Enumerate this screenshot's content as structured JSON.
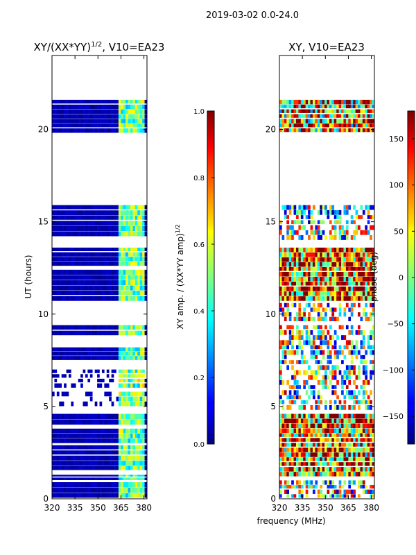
{
  "figure": {
    "suptitle": "2019-03-02 0.0-24.0",
    "shared_xlabel": "frequency (MHz)"
  },
  "chart_data": [
    {
      "type": "heatmap",
      "title_prefix": "XY/(XX*YY)",
      "title_exponent": "1/2",
      "title_suffix": ", V10=EA23",
      "ylabel": "UT (hours)",
      "xlim": [
        320,
        382
      ],
      "ylim": [
        0,
        24
      ],
      "xticks": [
        320,
        335,
        350,
        365,
        380
      ],
      "yticks": [
        0,
        5,
        10,
        15,
        20
      ],
      "colormap": "jet",
      "colorbar": {
        "label_prefix": "XY amp. / (XX*YY amp)",
        "label_exponent": "1/2",
        "range": [
          0.0,
          1.0
        ],
        "ticks": [
          "0.0",
          "0.2",
          "0.4",
          "0.6",
          "0.8",
          "1.0"
        ]
      },
      "data_rows": [
        {
          "t0": 0.0,
          "t1": 0.9,
          "level": 0.05
        },
        {
          "t0": 1.0,
          "t1": 1.3,
          "level": 0.05
        },
        {
          "t0": 1.5,
          "t1": 2.9,
          "level": 0.05
        },
        {
          "t0": 3.0,
          "t1": 3.8,
          "level": 0.05
        },
        {
          "t0": 4.0,
          "t1": 4.6,
          "level": 0.05
        },
        {
          "t0": 5.0,
          "t1": 5.8,
          "level": 0.2
        },
        {
          "t0": 6.0,
          "t1": 7.0,
          "level": 0.2
        },
        {
          "t0": 7.5,
          "t1": 8.2,
          "level": 0.05
        },
        {
          "t0": 8.8,
          "t1": 9.4,
          "level": 0.05
        },
        {
          "t0": 10.7,
          "t1": 12.4,
          "level": 0.05
        },
        {
          "t0": 12.6,
          "t1": 13.6,
          "level": 0.05
        },
        {
          "t0": 14.2,
          "t1": 15.9,
          "level": 0.05
        },
        {
          "t0": 19.8,
          "t1": 21.6,
          "level": 0.05
        }
      ]
    },
    {
      "type": "heatmap",
      "title": "XY, V10=EA23",
      "xlim": [
        320,
        382
      ],
      "ylim": [
        0,
        24
      ],
      "xticks": [
        320,
        335,
        350,
        365,
        380
      ],
      "yticks": [
        0,
        5,
        10,
        15,
        20
      ],
      "colormap": "jet",
      "colorbar": {
        "label": "phase (deg)",
        "range": [
          -180,
          180
        ],
        "ticks": [
          "-150",
          "-100",
          "-50",
          "0",
          "50",
          "100",
          "150"
        ]
      },
      "data_rows": [
        {
          "t0": 0.0,
          "t1": 1.0,
          "level": 0.5
        },
        {
          "t0": 1.2,
          "t1": 4.6,
          "level": 0.75
        },
        {
          "t0": 4.8,
          "t1": 9.4,
          "level": 0.5
        },
        {
          "t0": 9.6,
          "t1": 10.6,
          "level": 0.5
        },
        {
          "t0": 10.7,
          "t1": 13.6,
          "level": 0.8
        },
        {
          "t0": 14.0,
          "t1": 15.9,
          "level": 0.45
        },
        {
          "t0": 19.8,
          "t1": 21.6,
          "level": 0.7
        }
      ]
    }
  ]
}
